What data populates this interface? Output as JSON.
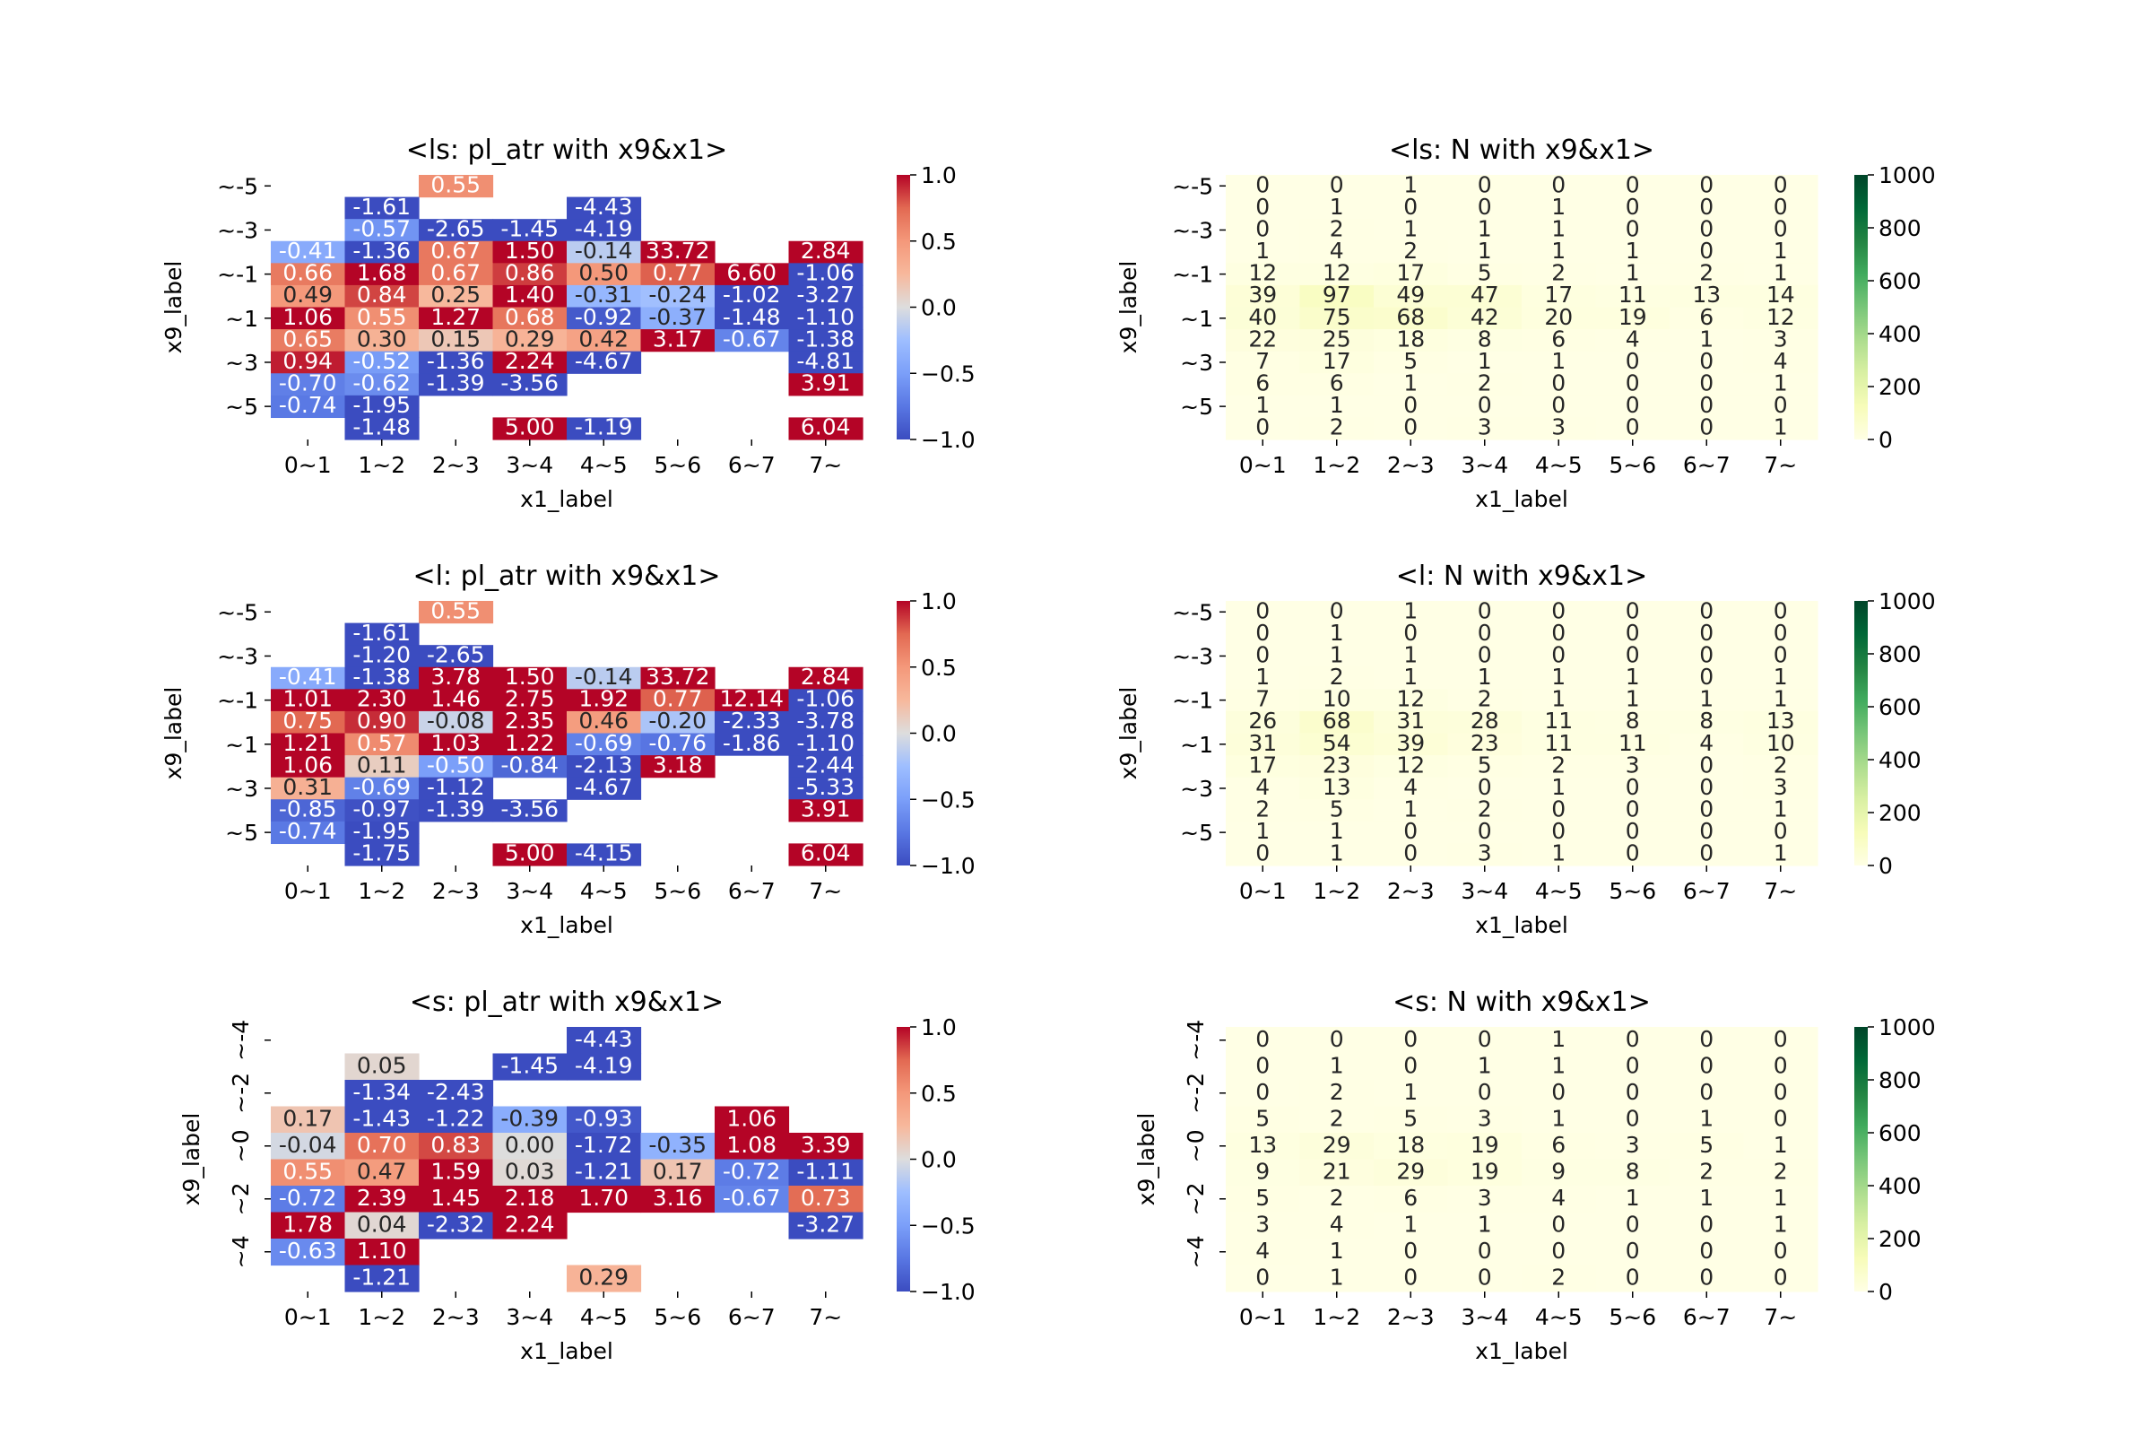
{
  "chart_data": [
    {
      "type": "heatmap",
      "title": "<ls: pl_atr with x9&x1>",
      "xlabel": "x1_label",
      "ylabel": "x9_label",
      "x_tick_labels": [
        "0~1",
        "1~2",
        "2~3",
        "3~4",
        "4~5",
        "5~6",
        "6~7",
        "7~"
      ],
      "y_tick_labels": [
        "~-5",
        "~-3",
        "~-1",
        "~1",
        "~3",
        "~5"
      ],
      "colormap": "coolwarm",
      "colorbar_range": [
        -1.0,
        1.0
      ],
      "colorbar_ticks": [
        "1.0",
        "0.5",
        "0.0",
        "−0.5",
        "−1.0"
      ],
      "values": [
        [
          null,
          null,
          0.55,
          null,
          null,
          null,
          null,
          null
        ],
        [
          null,
          -1.61,
          null,
          null,
          -4.43,
          null,
          null,
          null
        ],
        [
          null,
          -0.57,
          -2.65,
          -1.45,
          -4.19,
          null,
          null,
          null
        ],
        [
          -0.41,
          -1.36,
          0.67,
          1.5,
          -0.14,
          33.72,
          null,
          2.84
        ],
        [
          0.66,
          1.68,
          0.67,
          0.86,
          0.5,
          0.77,
          6.6,
          -1.06
        ],
        [
          0.49,
          0.84,
          0.25,
          1.4,
          -0.31,
          -0.24,
          -1.02,
          -3.27
        ],
        [
          1.06,
          0.55,
          1.27,
          0.68,
          -0.92,
          -0.37,
          -1.48,
          -1.1
        ],
        [
          0.65,
          0.3,
          0.15,
          0.29,
          0.42,
          3.17,
          -0.67,
          -1.38
        ],
        [
          0.94,
          -0.52,
          -1.36,
          2.24,
          -4.67,
          null,
          null,
          -4.81
        ],
        [
          -0.7,
          -0.62,
          -1.39,
          -3.56,
          null,
          null,
          null,
          3.91
        ],
        [
          -0.74,
          -1.95,
          null,
          null,
          null,
          null,
          null,
          null
        ],
        [
          null,
          -1.48,
          null,
          5.0,
          -1.19,
          null,
          null,
          6.04
        ]
      ]
    },
    {
      "type": "heatmap",
      "title": "<ls: N with x9&x1>",
      "xlabel": "x1_label",
      "ylabel": "x9_label",
      "x_tick_labels": [
        "0~1",
        "1~2",
        "2~3",
        "3~4",
        "4~5",
        "5~6",
        "6~7",
        "7~"
      ],
      "y_tick_labels": [
        "~-5",
        "~-3",
        "~-1",
        "~1",
        "~3",
        "~5"
      ],
      "colormap": "Greens",
      "colorbar_range": [
        0,
        1000
      ],
      "colorbar_ticks": [
        "1000",
        "800",
        "600",
        "400",
        "200",
        "0"
      ],
      "values": [
        [
          0,
          0,
          1,
          0,
          0,
          0,
          0,
          0
        ],
        [
          0,
          1,
          0,
          0,
          1,
          0,
          0,
          0
        ],
        [
          0,
          2,
          1,
          1,
          1,
          0,
          0,
          0
        ],
        [
          1,
          4,
          2,
          1,
          1,
          1,
          0,
          1
        ],
        [
          12,
          12,
          17,
          5,
          2,
          1,
          2,
          1
        ],
        [
          39,
          97,
          49,
          47,
          17,
          11,
          13,
          14
        ],
        [
          40,
          75,
          68,
          42,
          20,
          19,
          6,
          12
        ],
        [
          22,
          25,
          18,
          8,
          6,
          4,
          1,
          3
        ],
        [
          7,
          17,
          5,
          1,
          1,
          0,
          0,
          4
        ],
        [
          6,
          6,
          1,
          2,
          0,
          0,
          0,
          1
        ],
        [
          1,
          1,
          0,
          0,
          0,
          0,
          0,
          0
        ],
        [
          0,
          2,
          0,
          3,
          3,
          0,
          0,
          1
        ]
      ]
    },
    {
      "type": "heatmap",
      "title": "<l: pl_atr with x9&x1>",
      "xlabel": "x1_label",
      "ylabel": "x9_label",
      "x_tick_labels": [
        "0~1",
        "1~2",
        "2~3",
        "3~4",
        "4~5",
        "5~6",
        "6~7",
        "7~"
      ],
      "y_tick_labels": [
        "~-5",
        "~-3",
        "~-1",
        "~1",
        "~3",
        "~5"
      ],
      "colormap": "coolwarm",
      "colorbar_range": [
        -1.0,
        1.0
      ],
      "colorbar_ticks": [
        "1.0",
        "0.5",
        "0.0",
        "−0.5",
        "−1.0"
      ],
      "values": [
        [
          null,
          null,
          0.55,
          null,
          null,
          null,
          null,
          null
        ],
        [
          null,
          -1.61,
          null,
          null,
          null,
          null,
          null,
          null
        ],
        [
          null,
          -1.2,
          -2.65,
          null,
          null,
          null,
          null,
          null
        ],
        [
          -0.41,
          -1.38,
          3.78,
          1.5,
          -0.14,
          33.72,
          null,
          2.84
        ],
        [
          1.01,
          2.3,
          1.46,
          2.75,
          1.92,
          0.77,
          12.14,
          -1.06
        ],
        [
          0.75,
          0.9,
          -0.08,
          2.35,
          0.46,
          -0.2,
          -2.33,
          -3.78
        ],
        [
          1.21,
          0.57,
          1.03,
          1.22,
          -0.69,
          -0.76,
          -1.86,
          -1.1
        ],
        [
          1.06,
          0.11,
          -0.5,
          -0.84,
          -2.13,
          3.18,
          null,
          -2.44
        ],
        [
          0.31,
          -0.69,
          -1.12,
          null,
          -4.67,
          null,
          null,
          -5.33
        ],
        [
          -0.85,
          -0.97,
          -1.39,
          -3.56,
          null,
          null,
          null,
          3.91
        ],
        [
          -0.74,
          -1.95,
          null,
          null,
          null,
          null,
          null,
          null
        ],
        [
          null,
          -1.75,
          null,
          5.0,
          -4.15,
          null,
          null,
          6.04
        ]
      ]
    },
    {
      "type": "heatmap",
      "title": "<l: N with x9&x1>",
      "xlabel": "x1_label",
      "ylabel": "x9_label",
      "x_tick_labels": [
        "0~1",
        "1~2",
        "2~3",
        "3~4",
        "4~5",
        "5~6",
        "6~7",
        "7~"
      ],
      "y_tick_labels": [
        "~-5",
        "~-3",
        "~-1",
        "~1",
        "~3",
        "~5"
      ],
      "colormap": "Greens",
      "colorbar_range": [
        0,
        1000
      ],
      "colorbar_ticks": [
        "1000",
        "800",
        "600",
        "400",
        "200",
        "0"
      ],
      "values": [
        [
          0,
          0,
          1,
          0,
          0,
          0,
          0,
          0
        ],
        [
          0,
          1,
          0,
          0,
          0,
          0,
          0,
          0
        ],
        [
          0,
          1,
          1,
          0,
          0,
          0,
          0,
          0
        ],
        [
          1,
          2,
          1,
          1,
          1,
          1,
          0,
          1
        ],
        [
          7,
          10,
          12,
          2,
          1,
          1,
          1,
          1
        ],
        [
          26,
          68,
          31,
          28,
          11,
          8,
          8,
          13
        ],
        [
          31,
          54,
          39,
          23,
          11,
          11,
          4,
          10
        ],
        [
          17,
          23,
          12,
          5,
          2,
          3,
          0,
          2
        ],
        [
          4,
          13,
          4,
          0,
          1,
          0,
          0,
          3
        ],
        [
          2,
          5,
          1,
          2,
          0,
          0,
          0,
          1
        ],
        [
          1,
          1,
          0,
          0,
          0,
          0,
          0,
          0
        ],
        [
          0,
          1,
          0,
          3,
          1,
          0,
          0,
          1
        ]
      ]
    },
    {
      "type": "heatmap",
      "title": "<s: pl_atr with x9&x1>",
      "xlabel": "x1_label",
      "ylabel": "x9_label",
      "x_tick_labels": [
        "0~1",
        "1~2",
        "2~3",
        "3~4",
        "4~5",
        "5~6",
        "6~7",
        "7~"
      ],
      "y_tick_labels": [
        "~-4",
        "~-2",
        "~0",
        "~2",
        "~4"
      ],
      "colormap": "coolwarm",
      "colorbar_range": [
        -1.0,
        1.0
      ],
      "colorbar_ticks": [
        "1.0",
        "0.5",
        "0.0",
        "−0.5",
        "−1.0"
      ],
      "values": [
        [
          null,
          null,
          null,
          null,
          -4.43,
          null,
          null,
          null
        ],
        [
          null,
          0.05,
          null,
          -1.45,
          -4.19,
          null,
          null,
          null
        ],
        [
          null,
          -1.34,
          -2.43,
          null,
          null,
          null,
          null,
          null
        ],
        [
          0.17,
          -1.43,
          -1.22,
          -0.39,
          -0.93,
          null,
          1.06,
          null
        ],
        [
          -0.04,
          0.7,
          0.83,
          0.0,
          -1.72,
          -0.35,
          1.08,
          3.39
        ],
        [
          0.55,
          0.47,
          1.59,
          0.03,
          -1.21,
          0.17,
          -0.72,
          -1.11
        ],
        [
          -0.72,
          2.39,
          1.45,
          2.18,
          1.7,
          3.16,
          -0.67,
          0.73
        ],
        [
          1.78,
          0.04,
          -2.32,
          2.24,
          null,
          null,
          null,
          -3.27
        ],
        [
          -0.63,
          1.1,
          null,
          null,
          null,
          null,
          null,
          null
        ],
        [
          null,
          -1.21,
          null,
          null,
          0.29,
          null,
          null,
          null
        ]
      ]
    },
    {
      "type": "heatmap",
      "title": "<s: N with x9&x1>",
      "xlabel": "x1_label",
      "ylabel": "x9_label",
      "x_tick_labels": [
        "0~1",
        "1~2",
        "2~3",
        "3~4",
        "4~5",
        "5~6",
        "6~7",
        "7~"
      ],
      "y_tick_labels": [
        "~-4",
        "~-2",
        "~0",
        "~2",
        "~4"
      ],
      "colormap": "Greens",
      "colorbar_range": [
        0,
        1000
      ],
      "colorbar_ticks": [
        "1000",
        "800",
        "600",
        "400",
        "200",
        "0"
      ],
      "values": [
        [
          0,
          0,
          0,
          0,
          1,
          0,
          0,
          0
        ],
        [
          0,
          1,
          0,
          1,
          1,
          0,
          0,
          0
        ],
        [
          0,
          2,
          1,
          0,
          0,
          0,
          0,
          0
        ],
        [
          5,
          2,
          5,
          3,
          1,
          0,
          1,
          0
        ],
        [
          13,
          29,
          18,
          19,
          6,
          3,
          5,
          1
        ],
        [
          9,
          21,
          29,
          19,
          9,
          8,
          2,
          2
        ],
        [
          5,
          2,
          6,
          3,
          4,
          1,
          1,
          1
        ],
        [
          3,
          4,
          1,
          1,
          0,
          0,
          0,
          1
        ],
        [
          4,
          1,
          0,
          0,
          0,
          0,
          0,
          0
        ],
        [
          0,
          1,
          0,
          0,
          2,
          0,
          0,
          0
        ]
      ]
    }
  ]
}
